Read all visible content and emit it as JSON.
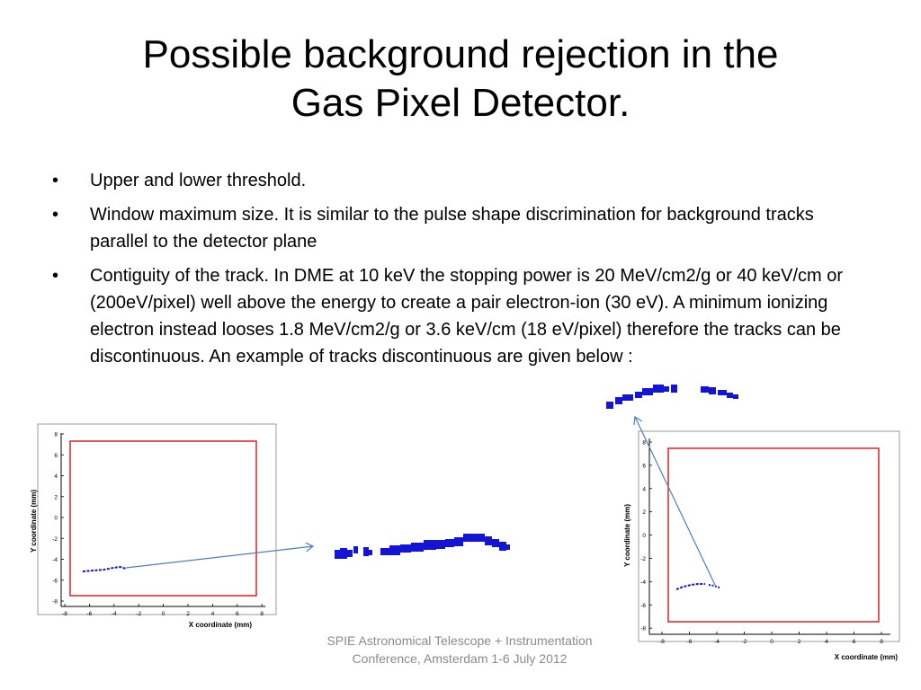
{
  "slide": {
    "title_line1": "Possible background rejection in the",
    "title_line2": "Gas Pixel Detector.",
    "bullets": [
      "Upper and lower threshold.",
      "Window maximum size. It is similar to the pulse shape discrimination for background tracks parallel to the detector plane",
      "Contiguity of the track. In DME at 10 keV the stopping power is 20 MeV/cm2/g or 40 keV/cm  or (200eV/pixel) well above the energy to create a pair electron-ion (30 eV). A minimum ionizing electron instead looses  1.8 MeV/cm2/g  or 3.6 keV/cm (18 eV/pixel) therefore the tracks can be discontinuous. An example of tracks discontinuous  are given below :"
    ],
    "bullet_symbol": "•",
    "footer": "SPIE Astronomical Telescope + Instrumentation Conference, Amsterdam 1-6 July 2012"
  },
  "plots": {
    "left": {
      "xlabel": "X coordinate (mm)",
      "ylabel": "Y coordinate (mm)",
      "xticks": [
        "-8",
        "-6",
        "-4",
        "-2",
        "0",
        "2",
        "4",
        "6",
        "8"
      ],
      "yticks": [
        "8",
        "6",
        "4",
        "2",
        "0",
        "-2",
        "-4",
        "-6",
        "-8"
      ]
    },
    "right": {
      "xlabel": "X coordinate (mm)",
      "ylabel": "Y coordinate (mm)",
      "xticks": [
        "-8",
        "-6",
        "-4",
        "-2",
        "0",
        "2",
        "4",
        "6",
        "8"
      ],
      "yticks": [
        "8",
        "6",
        "4",
        "2",
        "0",
        "-2",
        "-4",
        "-6",
        "-8"
      ]
    }
  },
  "colors": {
    "region_box": "#e02020",
    "track": "#1414d6",
    "arrow": "#4a7fc0",
    "footer_text": "#8a8a8a"
  }
}
